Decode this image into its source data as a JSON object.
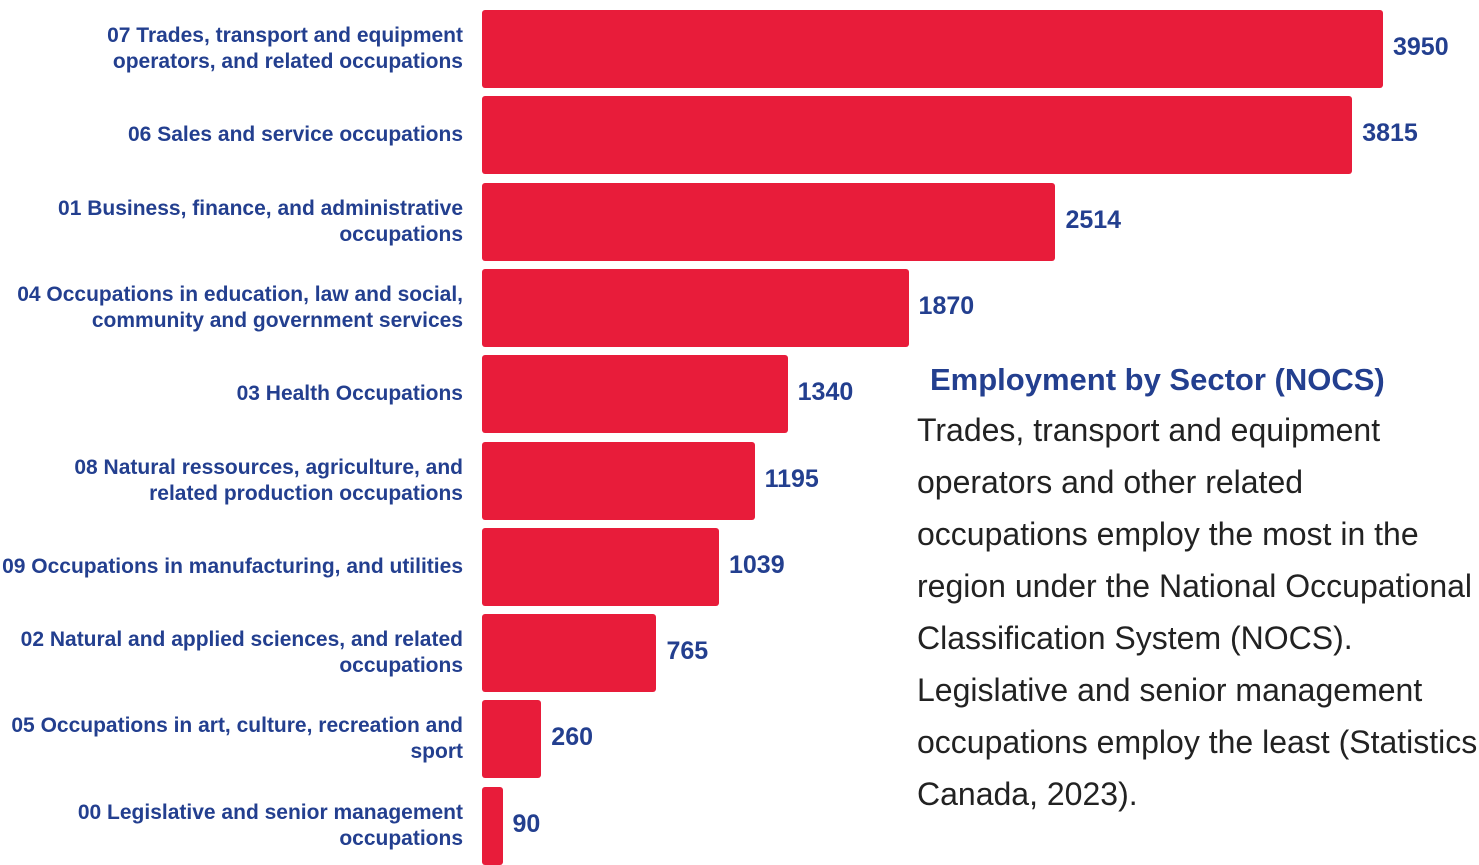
{
  "chart_data": {
    "type": "barh",
    "categories": [
      "07 Trades, transport and equipment operators, and related occupations",
      "06 Sales and service occupations",
      "01 Business, finance, and administrative occupations",
      "04 Occupations in education, law and social, community and government services",
      "03 Health Occupations",
      "08 Natural ressources, agriculture, and related production occupations",
      "09 Occupations in manufacturing, and utilities",
      "02 Natural and applied sciences, and related occupations",
      "05 Occupations in art, culture, recreation and sport",
      "00 Legislative and senior management occupations"
    ],
    "values": [
      3950,
      3815,
      2514,
      1870,
      1340,
      1195,
      1039,
      765,
      260,
      90
    ],
    "color": "#e81c3a"
  },
  "text_panel": {
    "title": "Employment by Sector (NOCS)",
    "lines": [
      "Trades, transport and equipment",
      "operators and other related",
      "occupations employ the most in the",
      "region under the National Occupational",
      "Classification System (NOCS).",
      "Legislative and senior management",
      "occupations employ the least (Statistics",
      "Canada, 2023)."
    ]
  }
}
